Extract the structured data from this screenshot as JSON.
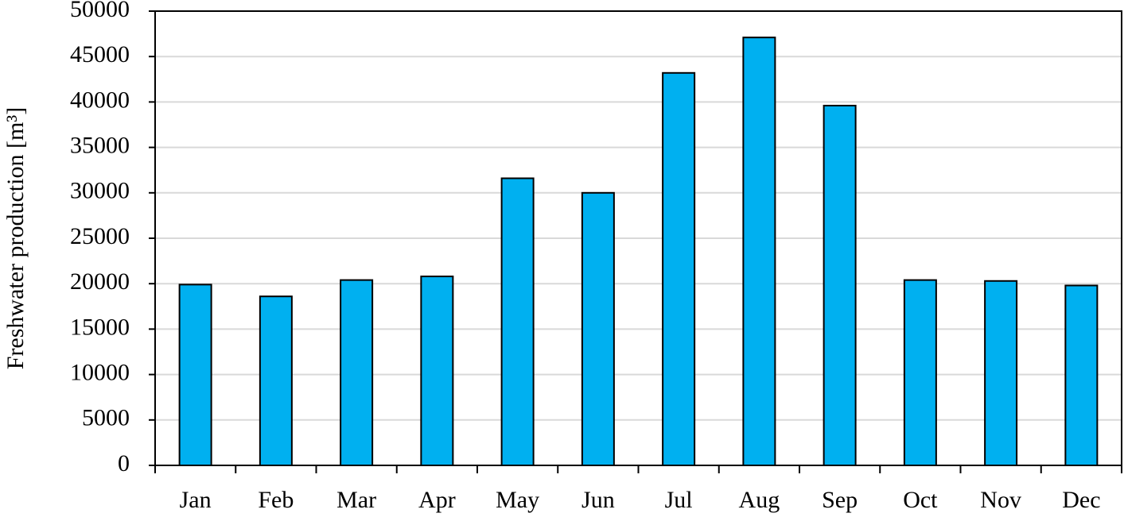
{
  "chart_data": {
    "type": "bar",
    "y_label": "Freshwater production [m³]",
    "categories": [
      "Jan",
      "Feb",
      "Mar",
      "Apr",
      "May",
      "Jun",
      "Jul",
      "Aug",
      "Sep",
      "Oct",
      "Nov",
      "Dec"
    ],
    "values": [
      19900,
      18600,
      20400,
      20800,
      31600,
      30000,
      43200,
      47100,
      39600,
      20400,
      20300,
      19800
    ],
    "color": "#00b0f0",
    "ylim": [
      0,
      50000
    ],
    "yticks": [
      0,
      5000,
      10000,
      15000,
      20000,
      25000,
      30000,
      35000,
      40000,
      45000,
      50000
    ],
    "grid": true
  }
}
